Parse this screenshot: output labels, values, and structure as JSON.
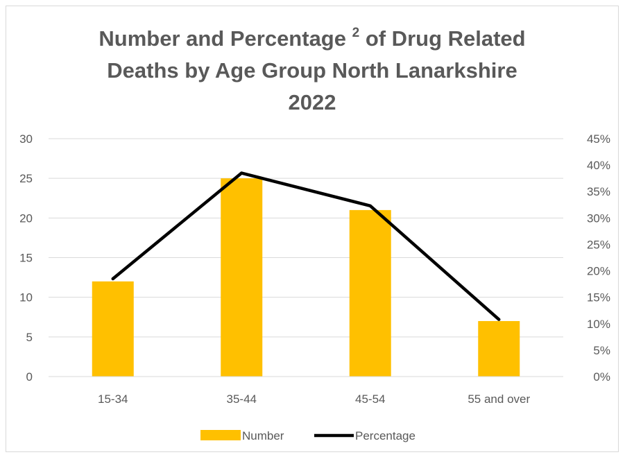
{
  "chart_data": {
    "type": "bar",
    "title": {
      "line1_pre": "Number and Percentage",
      "superscript": "2",
      "line1_post": "of Drug Related",
      "line2": "Deaths by Age Group North Lanarkshire",
      "line3": "2022"
    },
    "categories": [
      "15-34",
      "35-44",
      "45-54",
      "55 and over"
    ],
    "series": [
      {
        "name": "Number",
        "type": "bar",
        "axis": "left",
        "color": "#FFC000",
        "values": [
          12,
          25,
          21,
          7
        ]
      },
      {
        "name": "Percentage",
        "type": "line",
        "axis": "right",
        "color": "#000000",
        "values": [
          18.5,
          38.5,
          32.3,
          10.8
        ]
      }
    ],
    "y_left": {
      "min": 0,
      "max": 30,
      "ticks": [
        "0",
        "5",
        "10",
        "15",
        "20",
        "25",
        "30"
      ]
    },
    "y_right": {
      "min": 0,
      "max": 45,
      "ticks": [
        "0%",
        "5%",
        "10%",
        "15%",
        "20%",
        "25%",
        "30%",
        "35%",
        "40%",
        "45%"
      ]
    },
    "grid": true,
    "legend_position": "bottom",
    "colors": {
      "bar": "#FFC000",
      "line": "#000000",
      "gridline": "#d9d9d9",
      "text": "#595959"
    }
  }
}
